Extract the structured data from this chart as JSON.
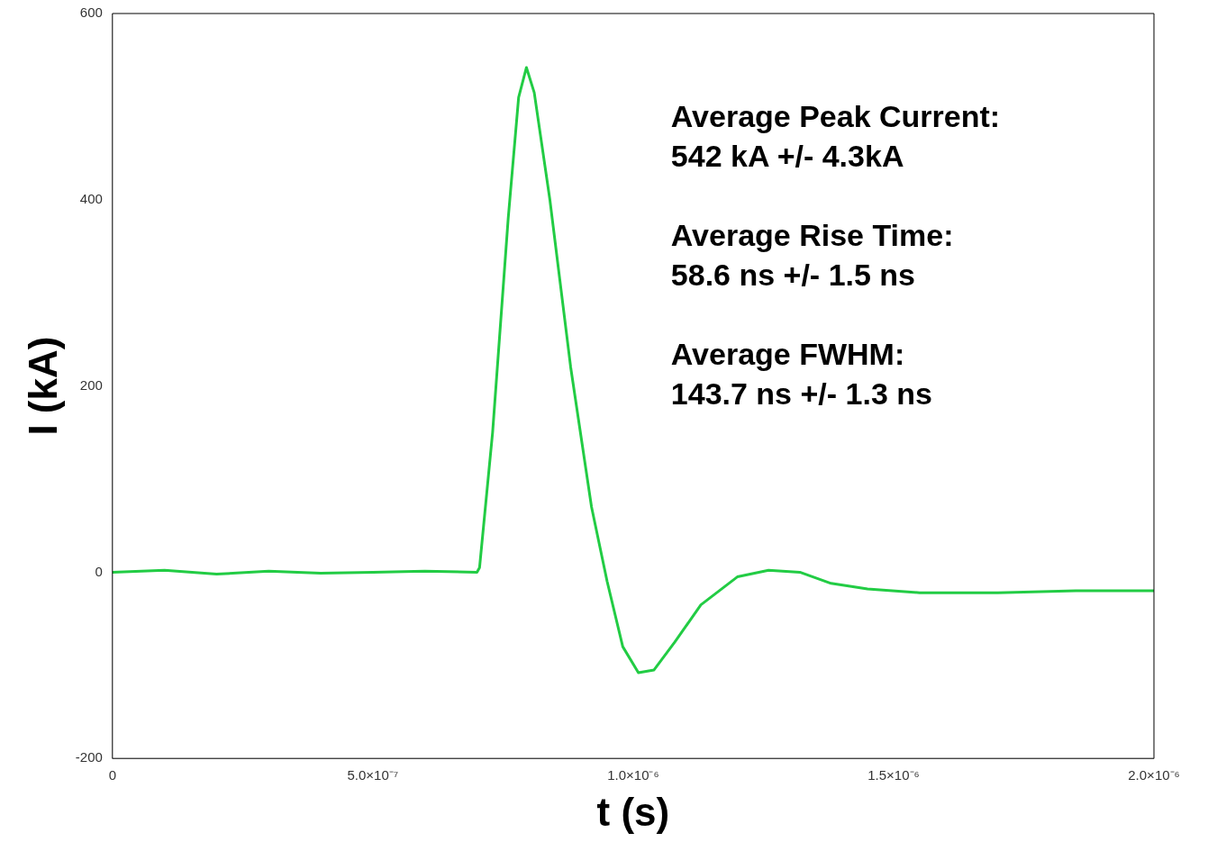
{
  "chart_data": {
    "type": "line",
    "xlabel": "t (s)",
    "ylabel": "I (kA)",
    "x": [
      0,
      1e-07,
      2e-07,
      3e-07,
      4e-07,
      5e-07,
      6e-07,
      7e-07,
      7.05e-07,
      7.3e-07,
      7.6e-07,
      7.8e-07,
      7.95e-07,
      8.1e-07,
      8.4e-07,
      8.8e-07,
      9.2e-07,
      9.5e-07,
      9.8e-07,
      1.01e-06,
      1.04e-06,
      1.08e-06,
      1.13e-06,
      1.2e-06,
      1.26e-06,
      1.32e-06,
      1.38e-06,
      1.45e-06,
      1.55e-06,
      1.7e-06,
      1.85e-06,
      2e-06
    ],
    "series": [
      {
        "color": "#22cc44",
        "values": [
          0,
          2,
          -2,
          1,
          -1,
          0,
          1,
          0,
          5,
          150,
          380,
          510,
          542,
          515,
          400,
          220,
          70,
          -10,
          -80,
          -108,
          -105,
          -75,
          -35,
          -5,
          2,
          0,
          -12,
          -18,
          -22,
          -22,
          -20,
          -20
        ]
      }
    ],
    "xlim": [
      0,
      2e-06
    ],
    "xticks": [
      0,
      {
        "value": 5e-07,
        "label": "5.0×10⁻⁷"
      },
      {
        "value": 1e-06,
        "label": "1.0×10⁻⁶"
      },
      {
        "value": 1.5e-06,
        "label": "1.5×10⁻⁶"
      },
      {
        "value": 2e-06,
        "label": "2.0×10⁻⁶"
      }
    ],
    "ylim": [
      -200,
      600
    ],
    "yticks": [
      -200,
      0,
      200,
      400,
      600
    ],
    "grid": false,
    "legend": false,
    "marker": "none",
    "line_style": "solid",
    "annotations": [
      "Average Peak Current:\n542 kA +/- 4.3kA",
      "Average Rise Time:\n58.6 ns +/- 1.5 ns",
      "Average FWHM:\n143.7 ns +/- 1.3 ns"
    ]
  }
}
